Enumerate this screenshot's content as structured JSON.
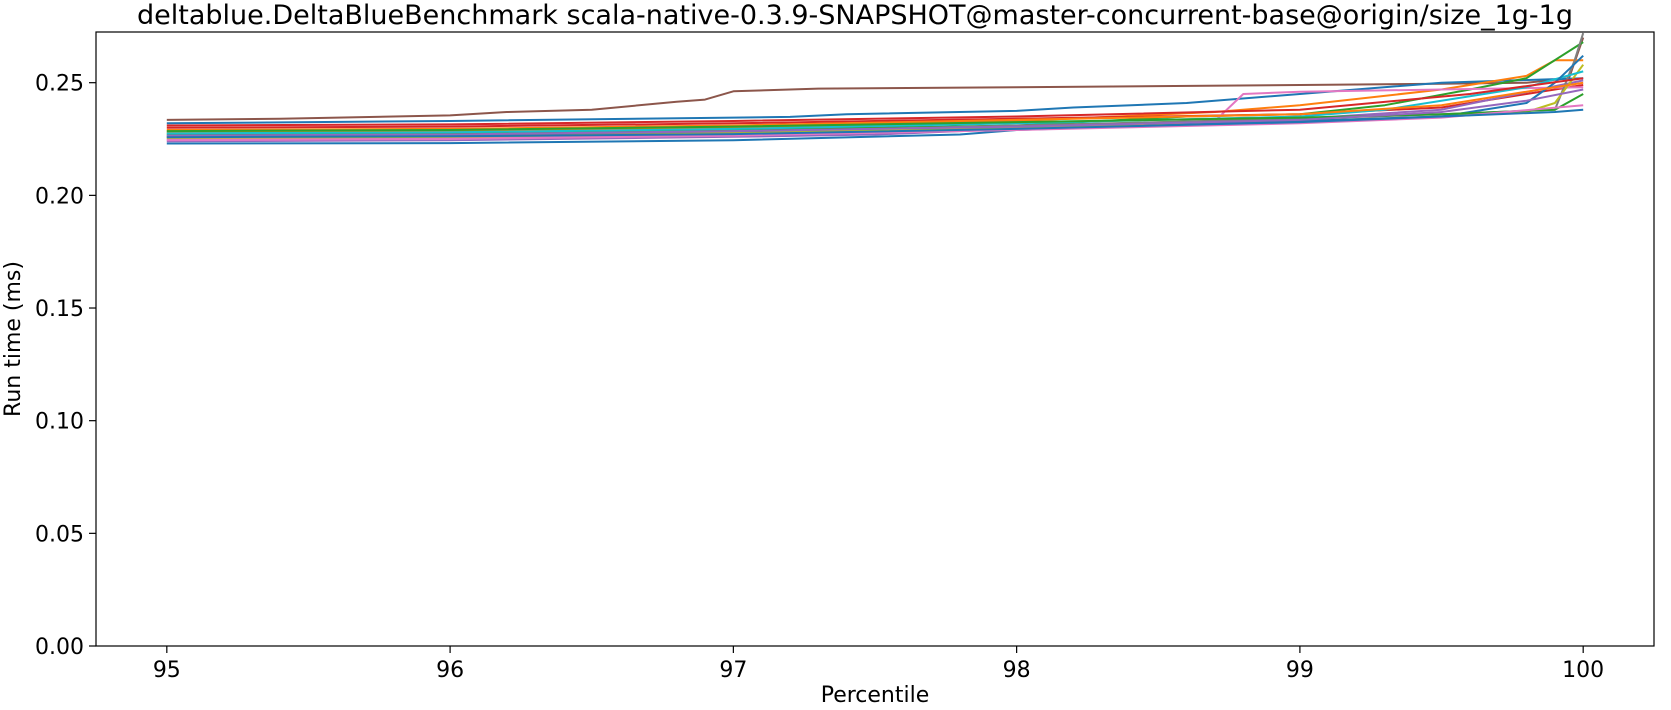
{
  "chart_data": {
    "type": "line",
    "title": "deltablue.DeltaBlueBenchmark scala-native-0.3.9-SNAPSHOT@master-concurrent-base@origin/size_1g-1g",
    "xlabel": "Percentile",
    "ylabel": "Run time (ms)",
    "xlim": [
      94.75,
      100.25
    ],
    "ylim": [
      0.0,
      0.2725
    ],
    "xticks": [
      95,
      96,
      97,
      98,
      99,
      100
    ],
    "xtick_labels": [
      "95",
      "96",
      "97",
      "98",
      "99",
      "100"
    ],
    "yticks": [
      0.0,
      0.05,
      0.1,
      0.15,
      0.2,
      0.25
    ],
    "ytick_labels": [
      "0.00",
      "0.05",
      "0.10",
      "0.15",
      "0.20",
      "0.25"
    ],
    "grid": false,
    "legend": "none",
    "series": [
      {
        "color": "#8c564b",
        "x": [
          95,
          95.4,
          96,
          96.2,
          96.5,
          96.8,
          96.9,
          97.0,
          97.3,
          98.0,
          98.5,
          99.0,
          99.5,
          99.8,
          99.95,
          100
        ],
        "y": [
          0.2335,
          0.234,
          0.2355,
          0.237,
          0.238,
          0.2415,
          0.2425,
          0.2462,
          0.2474,
          0.248,
          0.2485,
          0.249,
          0.2495,
          0.25,
          0.252,
          0.27
        ]
      },
      {
        "color": "#1f77b4",
        "x": [
          95,
          96,
          97,
          97.2,
          97.4,
          98.0,
          98.2,
          98.6,
          99.0,
          99.5,
          100
        ],
        "y": [
          0.232,
          0.233,
          0.2345,
          0.2348,
          0.236,
          0.2375,
          0.239,
          0.241,
          0.245,
          0.25,
          0.252
        ]
      },
      {
        "color": "#ff7f0e",
        "x": [
          95,
          96,
          97,
          98,
          98.7,
          99.0,
          99.5,
          99.8,
          99.9,
          100
        ],
        "y": [
          0.228,
          0.2285,
          0.23,
          0.233,
          0.237,
          0.24,
          0.247,
          0.253,
          0.26,
          0.26
        ]
      },
      {
        "color": "#2ca02c",
        "x": [
          95,
          96,
          97,
          98,
          98.6,
          99.0,
          99.3,
          99.6,
          99.8,
          100
        ],
        "y": [
          0.227,
          0.2275,
          0.229,
          0.231,
          0.235,
          0.236,
          0.24,
          0.247,
          0.252,
          0.268
        ]
      },
      {
        "color": "#d62728",
        "x": [
          95,
          96,
          97,
          98,
          99,
          99.5,
          99.8,
          100
        ],
        "y": [
          0.23,
          0.2305,
          0.232,
          0.234,
          0.236,
          0.239,
          0.245,
          0.249
        ]
      },
      {
        "color": "#9467bd",
        "x": [
          95,
          96,
          97,
          97.5,
          98,
          98.5,
          99,
          99.5,
          100
        ],
        "y": [
          0.224,
          0.2245,
          0.226,
          0.227,
          0.2295,
          0.231,
          0.234,
          0.238,
          0.251
        ]
      },
      {
        "color": "#e377c2",
        "x": [
          95,
          96,
          97,
          98,
          98.7,
          98.8,
          99.0,
          99.5,
          100
        ],
        "y": [
          0.225,
          0.2255,
          0.227,
          0.23,
          0.233,
          0.245,
          0.246,
          0.247,
          0.248
        ]
      },
      {
        "color": "#7f7f7f",
        "x": [
          95,
          96,
          97,
          98,
          99,
          99.5,
          99.9,
          99.97,
          100
        ],
        "y": [
          0.226,
          0.2265,
          0.228,
          0.231,
          0.234,
          0.236,
          0.238,
          0.26,
          0.272
        ]
      },
      {
        "color": "#bcbd22",
        "x": [
          95,
          96,
          97,
          98,
          99,
          99.5,
          99.8,
          99.9,
          100
        ],
        "y": [
          0.2255,
          0.226,
          0.2275,
          0.23,
          0.233,
          0.235,
          0.237,
          0.241,
          0.258
        ]
      },
      {
        "color": "#17becf",
        "x": [
          95,
          96,
          97,
          98,
          99,
          99.3,
          99.6,
          99.8,
          100
        ],
        "y": [
          0.2275,
          0.228,
          0.2295,
          0.232,
          0.235,
          0.238,
          0.244,
          0.248,
          0.255
        ]
      },
      {
        "color": "#1f77b4",
        "x": [
          95,
          96,
          97,
          97.8,
          98,
          98.5,
          99,
          99.5,
          99.8,
          99.9,
          100
        ],
        "y": [
          0.223,
          0.2232,
          0.2245,
          0.227,
          0.229,
          0.231,
          0.233,
          0.235,
          0.241,
          0.25,
          0.262
        ]
      },
      {
        "color": "#ff7f0e",
        "x": [
          95,
          96,
          97,
          98,
          99,
          99.5,
          100
        ],
        "y": [
          0.229,
          0.2295,
          0.231,
          0.2335,
          0.236,
          0.24,
          0.25
        ]
      },
      {
        "color": "#2ca02c",
        "x": [
          95,
          96,
          97,
          98,
          99,
          99.5,
          99.9,
          100
        ],
        "y": [
          0.2285,
          0.229,
          0.2305,
          0.2325,
          0.2345,
          0.236,
          0.238,
          0.245
        ]
      },
      {
        "color": "#d62728",
        "x": [
          95,
          96,
          97,
          98,
          99,
          99.6,
          100
        ],
        "y": [
          0.231,
          0.2315,
          0.233,
          0.235,
          0.238,
          0.245,
          0.252
        ]
      },
      {
        "color": "#9467bd",
        "x": [
          95,
          96,
          97,
          98,
          99,
          99.5,
          99.8,
          100
        ],
        "y": [
          0.2265,
          0.227,
          0.2285,
          0.2305,
          0.2335,
          0.237,
          0.242,
          0.247
        ]
      },
      {
        "color": "#e377c2",
        "x": [
          95,
          96,
          97,
          98,
          99,
          99.5,
          100
        ],
        "y": [
          0.2245,
          0.225,
          0.2265,
          0.229,
          0.232,
          0.2345,
          0.24
        ]
      },
      {
        "color": "#1f77b4",
        "x": [
          95,
          96,
          97,
          98,
          99,
          99.5,
          99.9,
          100
        ],
        "y": [
          0.2258,
          0.2262,
          0.2272,
          0.2295,
          0.2325,
          0.235,
          0.237,
          0.238
        ]
      }
    ]
  }
}
